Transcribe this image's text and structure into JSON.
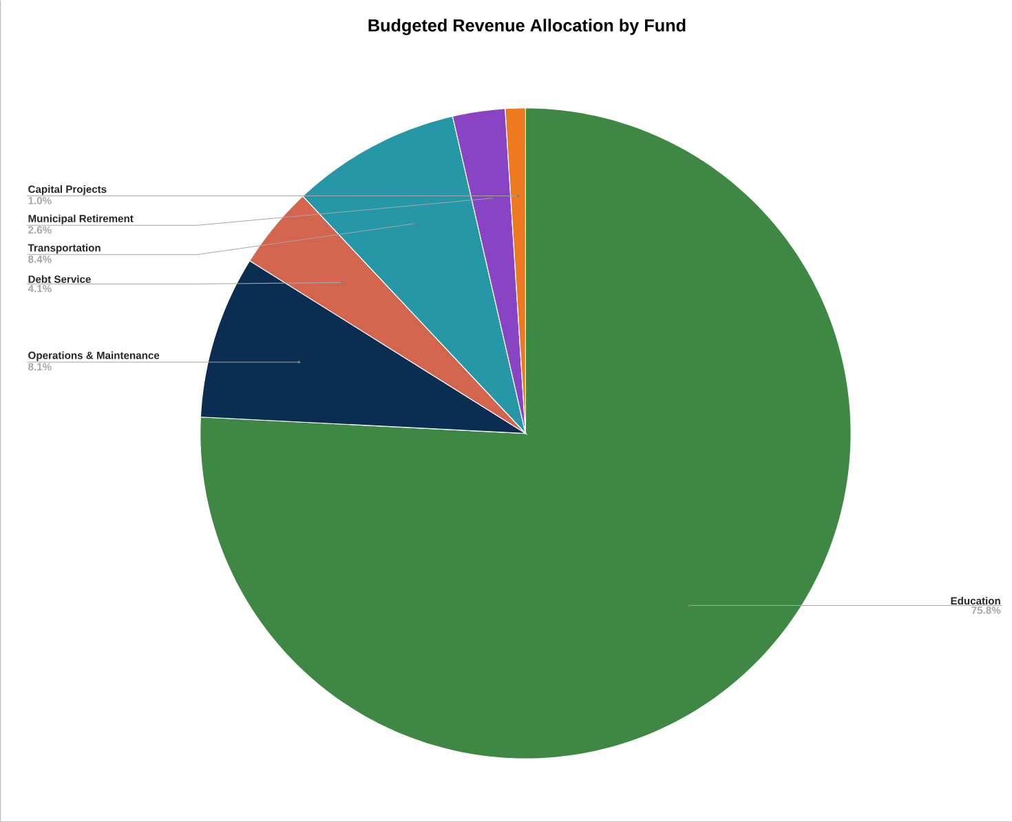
{
  "chart_data": {
    "type": "pie",
    "title": "Budgeted Revenue Allocation by Fund",
    "categories": [
      "Education",
      "Operations & Maintenance",
      "Debt Service",
      "Transportation",
      "Municipal Retirement",
      "Capital Projects"
    ],
    "values": [
      75.8,
      8.1,
      4.1,
      8.4,
      2.6,
      1.0
    ],
    "colors": [
      "#3f8843",
      "#0b2d52",
      "#d3654f",
      "#2597a7",
      "#8944c3",
      "#ee7a1f"
    ],
    "value_labels": [
      "75.8%",
      "8.1%",
      "4.1%",
      "8.4%",
      "2.6%",
      "1.0%"
    ]
  }
}
